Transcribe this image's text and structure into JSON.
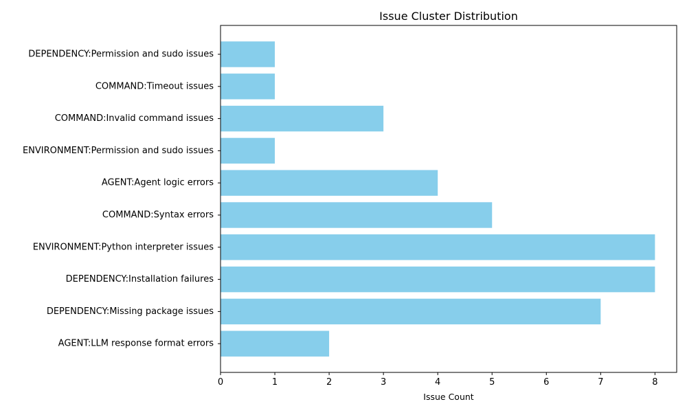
{
  "chart_data": {
    "type": "bar",
    "orientation": "horizontal",
    "title": "Issue Cluster Distribution",
    "xlabel": "Issue Count",
    "ylabel": "",
    "xlim": [
      0,
      8.4
    ],
    "xticks": [
      0,
      1,
      2,
      3,
      4,
      5,
      6,
      7,
      8
    ],
    "categories": [
      "DEPENDENCY:Permission and sudo issues",
      "COMMAND:Timeout issues",
      "COMMAND:Invalid command issues",
      "ENVIRONMENT:Permission and sudo issues",
      "AGENT:Agent logic errors",
      "COMMAND:Syntax errors",
      "ENVIRONMENT:Python interpreter issues",
      "DEPENDENCY:Installation failures",
      "DEPENDENCY:Missing package issues",
      "AGENT:LLM response format errors"
    ],
    "values": [
      1,
      1,
      3,
      1,
      4,
      5,
      8,
      8,
      7,
      2
    ],
    "bar_color": "#87ceeb",
    "grid": false,
    "legend": "none"
  }
}
